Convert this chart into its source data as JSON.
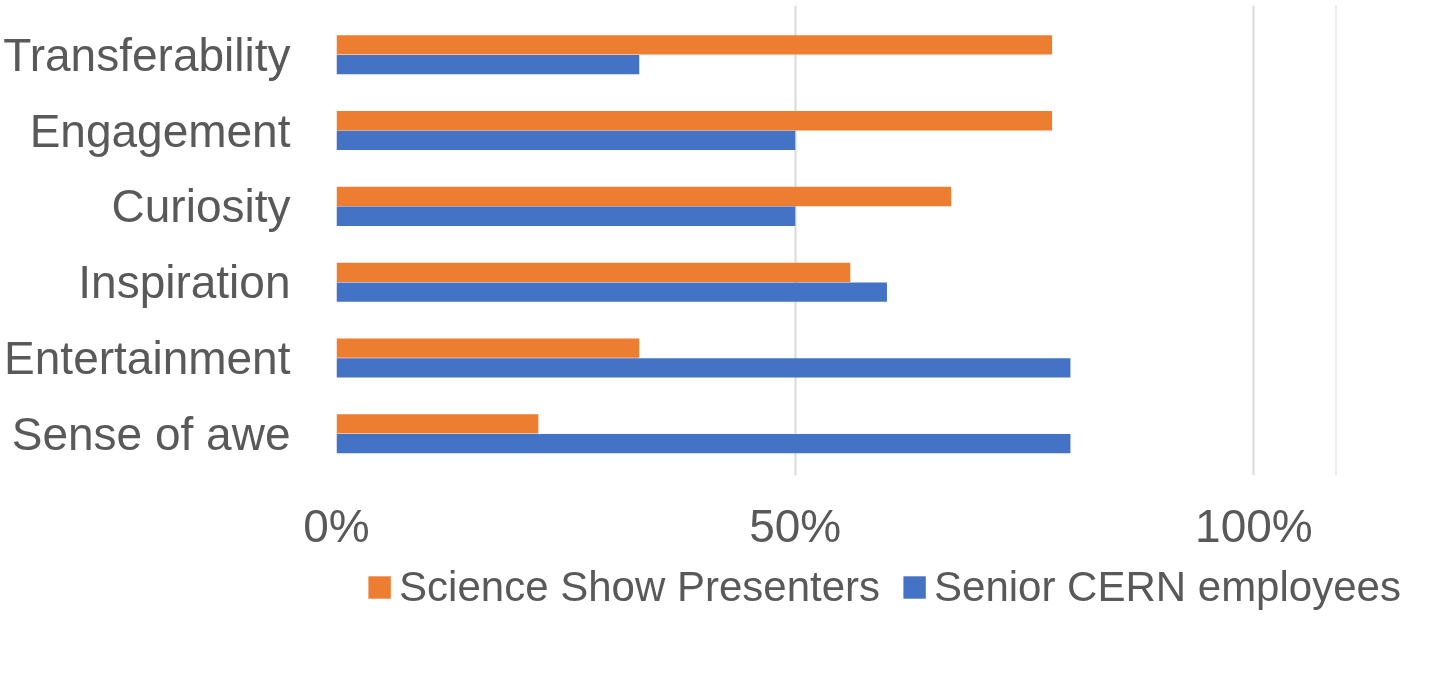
{
  "chart_data": {
    "type": "bar",
    "orientation": "horizontal",
    "categories": [
      "Transferability",
      "Engagement",
      "Curiosity",
      "Inspiration",
      "Entertainment",
      "Sense of awe"
    ],
    "series": [
      {
        "name": "Science Show Presenters",
        "color": "#ed7d31",
        "values": [
          78,
          78,
          67,
          56,
          33,
          22
        ]
      },
      {
        "name": "Senior CERN employees",
        "color": "#4472c4",
        "values": [
          33,
          50,
          50,
          60,
          80,
          80
        ]
      }
    ],
    "xlim": [
      0,
      109
    ],
    "xticks": [
      {
        "value": 0,
        "label": "0%"
      },
      {
        "value": 50,
        "label": "50%"
      },
      {
        "value": 100,
        "label": "100%"
      }
    ],
    "grid": "x",
    "legend": "bottom"
  }
}
